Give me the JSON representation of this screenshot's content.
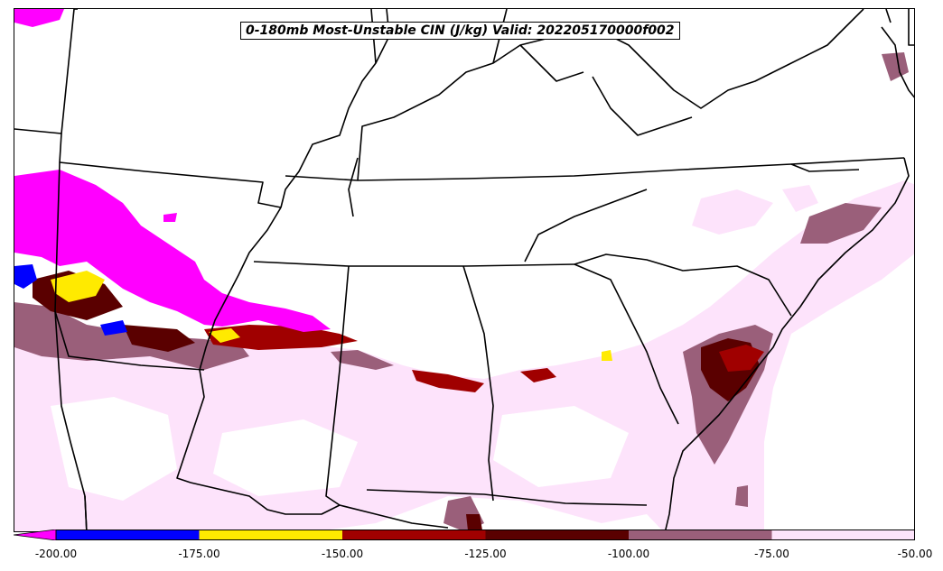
{
  "title": "0-180mb Most-Unstable CIN (J/kg) Valid: 202205170000f002",
  "colorbar": {
    "ticks": [
      "-200.00",
      "-175.00",
      "-150.00",
      "-125.00",
      "-100.00",
      "-75.00",
      "-50.00"
    ],
    "range": [
      -200,
      -50
    ],
    "bins": [
      {
        "from": -200,
        "to": -175,
        "color": "#0000ff"
      },
      {
        "from": -175,
        "to": -150,
        "color": "#ffea00"
      },
      {
        "from": -150,
        "to": -125,
        "color": "#a00000"
      },
      {
        "from": -125,
        "to": -100,
        "color": "#5a0000"
      },
      {
        "from": -100,
        "to": -75,
        "color": "#9a5f7a"
      },
      {
        "from": -75,
        "to": -50,
        "color": "#fde3fb"
      }
    ],
    "extend_low_color": "#ff00ff"
  },
  "colors": {
    "below_min": "#ff00ff",
    "light_pink": "#fde3fb",
    "mauve": "#9a5f7a",
    "dark_red": "#5a0000",
    "red": "#a00000",
    "yellow": "#ffea00",
    "blue": "#0000ff",
    "borders": "#000000"
  }
}
